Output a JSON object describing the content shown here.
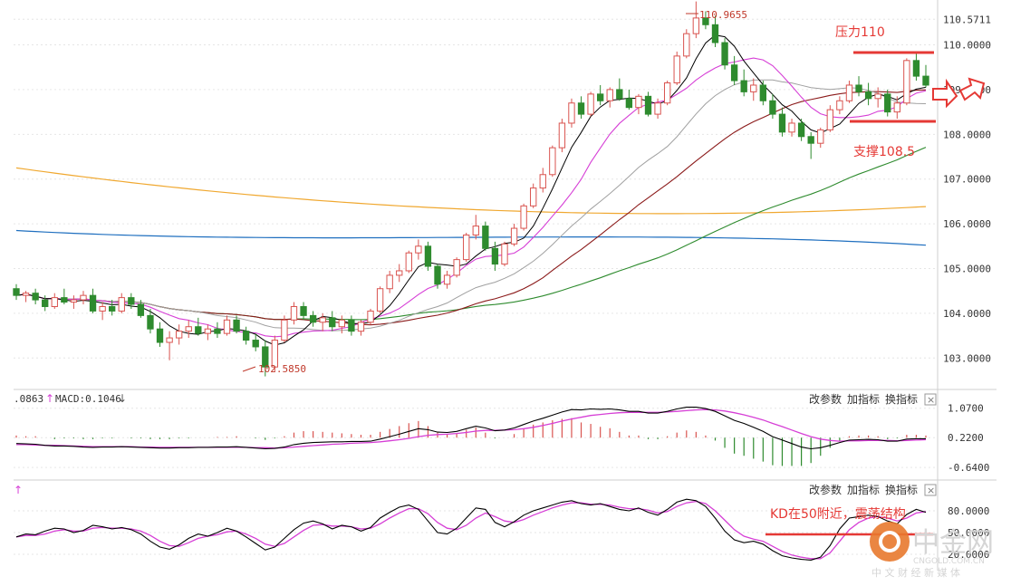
{
  "chart_data": [
    {
      "type": "candlestick",
      "panel": "price",
      "ylim": [
        102.5,
        110.8
      ],
      "y_ticks": [
        "110.5711",
        "110.0000",
        "109.0000",
        "108.0000",
        "107.0000",
        "106.0000",
        "105.0000",
        "104.0000",
        "103.0000"
      ],
      "y_tick_values": [
        110.5711,
        110.0,
        109.0,
        108.0,
        107.0,
        106.0,
        105.0,
        104.0,
        103.0
      ],
      "candles": [
        [
          104.55,
          104.65,
          104.3,
          104.4
        ],
        [
          104.4,
          104.5,
          104.25,
          104.45
        ],
        [
          104.45,
          104.55,
          104.2,
          104.3
        ],
        [
          104.3,
          104.4,
          104.05,
          104.15
        ],
        [
          104.15,
          104.45,
          104.1,
          104.35
        ],
        [
          104.35,
          104.55,
          104.2,
          104.25
        ],
        [
          104.25,
          104.4,
          104.1,
          104.3
        ],
        [
          104.3,
          104.5,
          104.2,
          104.4
        ],
        [
          104.4,
          104.55,
          104.0,
          104.05
        ],
        [
          104.05,
          104.25,
          103.85,
          104.15
        ],
        [
          104.15,
          104.3,
          103.95,
          104.05
        ],
        [
          104.05,
          104.45,
          104.0,
          104.35
        ],
        [
          104.35,
          104.45,
          104.1,
          104.2
        ],
        [
          104.2,
          104.3,
          103.9,
          103.95
        ],
        [
          103.95,
          104.1,
          103.55,
          103.65
        ],
        [
          103.65,
          103.8,
          103.25,
          103.35
        ],
        [
          103.35,
          103.6,
          102.95,
          103.45
        ],
        [
          103.45,
          103.75,
          103.3,
          103.6
        ],
        [
          103.6,
          103.85,
          103.45,
          103.7
        ],
        [
          103.7,
          103.9,
          103.5,
          103.55
        ],
        [
          103.55,
          103.75,
          103.4,
          103.65
        ],
        [
          103.65,
          103.8,
          103.45,
          103.55
        ],
        [
          103.55,
          103.95,
          103.5,
          103.85
        ],
        [
          103.85,
          103.95,
          103.55,
          103.6
        ],
        [
          103.6,
          103.7,
          103.3,
          103.4
        ],
        [
          103.4,
          103.55,
          103.15,
          103.25
        ],
        [
          103.25,
          103.4,
          102.59,
          102.8
        ],
        [
          102.8,
          103.5,
          102.7,
          103.4
        ],
        [
          103.4,
          103.95,
          103.35,
          103.85
        ],
        [
          103.85,
          104.25,
          103.75,
          104.15
        ],
        [
          104.15,
          104.25,
          103.85,
          103.95
        ],
        [
          103.95,
          104.05,
          103.7,
          103.8
        ],
        [
          103.8,
          104.0,
          103.6,
          103.9
        ],
        [
          103.9,
          104.05,
          103.6,
          103.7
        ],
        [
          103.7,
          103.95,
          103.55,
          103.85
        ],
        [
          103.85,
          103.95,
          103.5,
          103.6
        ],
        [
          103.6,
          103.85,
          103.5,
          103.8
        ],
        [
          103.8,
          104.1,
          103.75,
          104.05
        ],
        [
          104.05,
          104.6,
          104.0,
          104.55
        ],
        [
          104.55,
          104.95,
          104.45,
          104.85
        ],
        [
          104.85,
          105.1,
          104.7,
          104.95
        ],
        [
          104.95,
          105.4,
          104.9,
          105.35
        ],
        [
          105.35,
          105.65,
          105.2,
          105.5
        ],
        [
          105.5,
          105.6,
          104.95,
          105.05
        ],
        [
          105.05,
          105.1,
          104.55,
          104.65
        ],
        [
          104.65,
          104.95,
          104.55,
          104.85
        ],
        [
          104.85,
          105.25,
          104.8,
          105.2
        ],
        [
          105.2,
          105.8,
          105.15,
          105.75
        ],
        [
          105.75,
          106.2,
          105.65,
          105.95
        ],
        [
          105.95,
          106.05,
          105.4,
          105.45
        ],
        [
          105.45,
          105.6,
          104.95,
          105.1
        ],
        [
          105.1,
          105.6,
          105.05,
          105.55
        ],
        [
          105.55,
          106.0,
          105.5,
          105.9
        ],
        [
          105.9,
          106.45,
          105.85,
          106.4
        ],
        [
          106.4,
          106.9,
          106.35,
          106.8
        ],
        [
          106.8,
          107.25,
          106.7,
          107.1
        ],
        [
          107.1,
          107.75,
          107.05,
          107.7
        ],
        [
          107.7,
          108.35,
          107.6,
          108.25
        ],
        [
          108.25,
          108.8,
          108.15,
          108.7
        ],
        [
          108.7,
          108.85,
          108.35,
          108.45
        ],
        [
          108.45,
          108.95,
          108.4,
          108.9
        ],
        [
          108.9,
          109.1,
          108.65,
          108.75
        ],
        [
          108.75,
          109.05,
          108.6,
          109.0
        ],
        [
          109.0,
          109.25,
          108.75,
          108.8
        ],
        [
          108.8,
          109.0,
          108.55,
          108.6
        ],
        [
          108.6,
          108.9,
          108.45,
          108.85
        ],
        [
          108.85,
          108.95,
          108.4,
          108.45
        ],
        [
          108.45,
          108.8,
          108.35,
          108.7
        ],
        [
          108.7,
          109.2,
          108.65,
          109.15
        ],
        [
          109.15,
          109.85,
          109.1,
          109.75
        ],
        [
          109.75,
          110.35,
          109.7,
          110.25
        ],
        [
          110.25,
          110.97,
          110.15,
          110.6
        ],
        [
          110.6,
          110.75,
          110.35,
          110.45
        ],
        [
          110.45,
          110.65,
          109.95,
          110.05
        ],
        [
          110.05,
          110.15,
          109.45,
          109.55
        ],
        [
          109.55,
          109.75,
          109.1,
          109.2
        ],
        [
          109.2,
          109.45,
          108.85,
          108.95
        ],
        [
          108.95,
          109.25,
          108.75,
          109.1
        ],
        [
          109.1,
          109.2,
          108.65,
          108.75
        ],
        [
          108.75,
          108.9,
          108.35,
          108.45
        ],
        [
          108.45,
          108.6,
          107.95,
          108.05
        ],
        [
          108.05,
          108.35,
          107.95,
          108.25
        ],
        [
          108.25,
          108.35,
          107.85,
          107.95
        ],
        [
          107.95,
          108.05,
          107.45,
          107.8
        ],
        [
          107.8,
          108.15,
          107.7,
          108.1
        ],
        [
          108.1,
          108.65,
          108.05,
          108.55
        ],
        [
          108.55,
          108.85,
          108.45,
          108.75
        ],
        [
          108.75,
          109.2,
          108.7,
          109.1
        ],
        [
          109.1,
          109.3,
          108.85,
          108.95
        ],
        [
          108.95,
          109.15,
          108.65,
          108.8
        ],
        [
          108.8,
          109.05,
          108.6,
          108.9
        ],
        [
          108.9,
          109.0,
          108.4,
          108.5
        ],
        [
          108.5,
          108.85,
          108.35,
          108.7
        ],
        [
          108.7,
          109.7,
          108.65,
          109.65
        ],
        [
          109.65,
          109.8,
          109.2,
          109.3
        ],
        [
          109.3,
          109.55,
          109.05,
          109.1
        ]
      ],
      "moving_averages": {
        "colors": [
          "#000000",
          "#d63fd6",
          "#a0a0a0",
          "#8b1a1a",
          "#2e8b2e",
          "#1f6fbf",
          "#f0a830"
        ]
      },
      "annotations": {
        "high_label": "110.9655",
        "low_label": "102.5850",
        "resistance_text": "压力110",
        "resistance_value": 110.0,
        "support_text": "支撑108.5",
        "support_value": 108.5
      }
    },
    {
      "type": "bar+line",
      "panel": "macd",
      "legend_prefix": ".0863",
      "macd_label": "MACD:0.1046",
      "y_ticks": [
        "1.0700",
        "0.2200",
        "-0.6400"
      ],
      "y_tick_values": [
        1.07,
        0.22,
        -0.64
      ],
      "ylim": [
        -0.95,
        1.35
      ],
      "dif": [
        0.05,
        0.04,
        0.03,
        0.0,
        -0.02,
        -0.02,
        -0.03,
        -0.05,
        -0.06,
        -0.05,
        -0.05,
        -0.04,
        -0.05,
        -0.06,
        -0.07,
        -0.08,
        -0.08,
        -0.07,
        -0.07,
        -0.06,
        -0.06,
        -0.05,
        -0.05,
        -0.04,
        -0.06,
        -0.08,
        -0.1,
        -0.09,
        -0.05,
        0.02,
        0.06,
        0.08,
        0.09,
        0.1,
        0.1,
        0.11,
        0.11,
        0.12,
        0.18,
        0.25,
        0.32,
        0.4,
        0.48,
        0.45,
        0.38,
        0.37,
        0.4,
        0.48,
        0.55,
        0.5,
        0.42,
        0.44,
        0.5,
        0.6,
        0.7,
        0.78,
        0.87,
        0.96,
        1.03,
        1.02,
        1.05,
        1.04,
        1.05,
        1.02,
        0.98,
        0.98,
        0.93,
        0.93,
        0.98,
        1.05,
        1.1,
        1.1,
        1.06,
        0.98,
        0.85,
        0.72,
        0.63,
        0.52,
        0.4,
        0.25,
        0.15,
        0.05,
        -0.05,
        -0.1,
        -0.07,
        0.0,
        0.08,
        0.15,
        0.16,
        0.17,
        0.16,
        0.12,
        0.12,
        0.18,
        0.19,
        0.19
      ],
      "dea": [
        0.02,
        0.02,
        0.01,
        0.0,
        0.0,
        -0.01,
        -0.02,
        -0.03,
        -0.04,
        -0.04,
        -0.04,
        -0.04,
        -0.04,
        -0.05,
        -0.05,
        -0.06,
        -0.06,
        -0.06,
        -0.06,
        -0.06,
        -0.06,
        -0.06,
        -0.06,
        -0.06,
        -0.06,
        -0.07,
        -0.07,
        -0.08,
        -0.07,
        -0.05,
        -0.03,
        -0.01,
        0.01,
        0.03,
        0.04,
        0.06,
        0.07,
        0.08,
        0.1,
        0.13,
        0.16,
        0.2,
        0.25,
        0.29,
        0.31,
        0.32,
        0.34,
        0.37,
        0.41,
        0.43,
        0.43,
        0.44,
        0.45,
        0.48,
        0.52,
        0.57,
        0.63,
        0.7,
        0.76,
        0.81,
        0.86,
        0.89,
        0.92,
        0.94,
        0.95,
        0.95,
        0.95,
        0.95,
        0.96,
        0.98,
        1.0,
        1.02,
        1.03,
        1.02,
        0.99,
        0.94,
        0.88,
        0.81,
        0.73,
        0.63,
        0.54,
        0.44,
        0.34,
        0.25,
        0.18,
        0.14,
        0.12,
        0.13,
        0.13,
        0.14,
        0.14,
        0.14,
        0.13,
        0.14,
        0.15,
        0.16
      ]
    },
    {
      "type": "line",
      "panel": "kd",
      "y_ticks": [
        "80.0000",
        "50.0000",
        "20.0000"
      ],
      "y_tick_values": [
        80,
        50,
        20
      ],
      "ylim": [
        0,
        100
      ],
      "k": [
        44,
        48,
        47,
        52,
        56,
        55,
        50,
        53,
        60,
        58,
        55,
        57,
        54,
        48,
        38,
        30,
        27,
        33,
        42,
        48,
        45,
        50,
        56,
        52,
        44,
        35,
        26,
        30,
        42,
        54,
        63,
        66,
        62,
        55,
        60,
        58,
        52,
        57,
        70,
        78,
        85,
        88,
        82,
        66,
        50,
        48,
        56,
        70,
        84,
        82,
        64,
        58,
        65,
        74,
        80,
        84,
        88,
        92,
        94,
        90,
        88,
        90,
        86,
        82,
        80,
        84,
        78,
        74,
        82,
        92,
        96,
        94,
        86,
        70,
        52,
        40,
        36,
        38,
        34,
        25,
        18,
        15,
        13,
        12,
        16,
        32,
        55,
        70,
        72,
        74,
        72,
        66,
        62,
        75,
        82,
        78
      ],
      "d": [
        44,
        46,
        46,
        48,
        52,
        54,
        52,
        52,
        56,
        57,
        56,
        56,
        55,
        52,
        46,
        38,
        32,
        31,
        36,
        42,
        45,
        47,
        51,
        52,
        48,
        42,
        34,
        31,
        35,
        44,
        53,
        60,
        61,
        59,
        59,
        58,
        55,
        56,
        62,
        70,
        77,
        83,
        83,
        76,
        64,
        56,
        54,
        60,
        70,
        77,
        72,
        66,
        64,
        68,
        74,
        79,
        84,
        88,
        91,
        91,
        89,
        89,
        88,
        85,
        83,
        83,
        81,
        77,
        79,
        86,
        91,
        93,
        90,
        80,
        67,
        54,
        45,
        41,
        38,
        31,
        24,
        19,
        16,
        14,
        14,
        22,
        38,
        54,
        64,
        70,
        72,
        70,
        66,
        70,
        77,
        79
      ]
    }
  ],
  "panel_buttons": {
    "change_params": "改参数",
    "add_indicator": "加指标",
    "switch_indicator": "换指标",
    "close_symbol": "×"
  },
  "kd_arrow_symbol": "↑",
  "kd_annotation": "KD在50附近，震荡结构",
  "watermark": {
    "brand": "中金网",
    "url": "CNGOLD.COM.CN",
    "tagline": "中 文 财 经 新 媒 体"
  },
  "colors": {
    "up": "#d9534f",
    "down": "#2e8b2e",
    "annotation": "#e53935",
    "macd_dif": "#000000",
    "macd_dea": "#d63fd6",
    "k_line": "#000000",
    "d_line": "#d63fd6"
  }
}
